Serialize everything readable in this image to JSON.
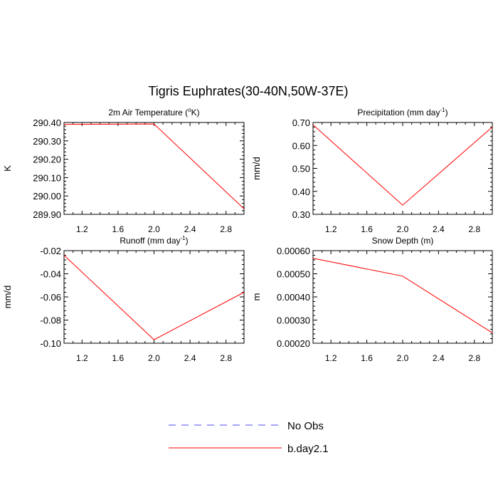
{
  "title": "Tigris Euphrates(30-40N,50W-37E)",
  "colors": {
    "model_line": "#ff0000",
    "obs_line": "#4b4bff",
    "axis": "#000000"
  },
  "legend": {
    "placement": "bottom-center",
    "items": [
      {
        "label": "No Obs",
        "style": "dashed",
        "color": "#4b4bff"
      },
      {
        "label": "b.day2.1",
        "style": "solid",
        "color": "#ff0000"
      }
    ]
  },
  "chart_data": [
    {
      "type": "line",
      "title": "2m Air Temperature (",
      "title_sup": "o",
      "title_end": "K)",
      "ylabel": "K",
      "xlim": [
        1.0,
        3.0
      ],
      "ylim": [
        289.9,
        290.4
      ],
      "xticks": [
        "1.2",
        "1.6",
        "2.0",
        "2.4",
        "2.8"
      ],
      "yticks": [
        "290.40",
        "290.30",
        "290.20",
        "290.10",
        "290.00",
        "289.90"
      ],
      "series": [
        {
          "name": "b.day2.1",
          "x": [
            1,
            2,
            3
          ],
          "y": [
            290.39,
            290.392,
            289.93
          ]
        }
      ]
    },
    {
      "type": "line",
      "title": "Precipitation (mm day",
      "title_sup": "-1",
      "title_end": ")",
      "ylabel": "mm/d",
      "xlim": [
        1.0,
        3.0
      ],
      "ylim": [
        0.3,
        0.7
      ],
      "xticks": [
        "1.2",
        "1.6",
        "2.0",
        "2.4",
        "2.8"
      ],
      "yticks": [
        "0.70",
        "0.60",
        "0.50",
        "0.40",
        "0.30"
      ],
      "series": [
        {
          "name": "b.day2.1",
          "x": [
            1,
            2,
            3
          ],
          "y": [
            0.69,
            0.34,
            0.68
          ]
        }
      ]
    },
    {
      "type": "line",
      "title": "Runoff (mm day",
      "title_sup": "-1",
      "title_end": ")",
      "ylabel": "mm/d",
      "xlim": [
        1.0,
        3.0
      ],
      "ylim": [
        -0.1,
        -0.02
      ],
      "xticks": [
        "1.2",
        "1.6",
        "2.0",
        "2.4",
        "2.8"
      ],
      "yticks": [
        "-0.02",
        "-0.04",
        "-0.06",
        "-0.08",
        "-0.10"
      ],
      "series": [
        {
          "name": "b.day2.1",
          "x": [
            1,
            2,
            3
          ],
          "y": [
            -0.024,
            -0.097,
            -0.056
          ]
        }
      ]
    },
    {
      "type": "line",
      "title": "Snow Depth (m)",
      "title_sup": "",
      "title_end": "",
      "ylabel": "m",
      "xlim": [
        1.0,
        3.0
      ],
      "ylim": [
        0.0002,
        0.0006
      ],
      "xticks": [
        "1.2",
        "1.6",
        "2.0",
        "2.4",
        "2.8"
      ],
      "yticks": [
        "0.00060",
        "0.00050",
        "0.00040",
        "0.00030",
        "0.00020"
      ],
      "series": [
        {
          "name": "b.day2.1",
          "x": [
            1,
            2,
            3
          ],
          "y": [
            0.000567,
            0.00049,
            0.000245
          ]
        }
      ]
    }
  ]
}
